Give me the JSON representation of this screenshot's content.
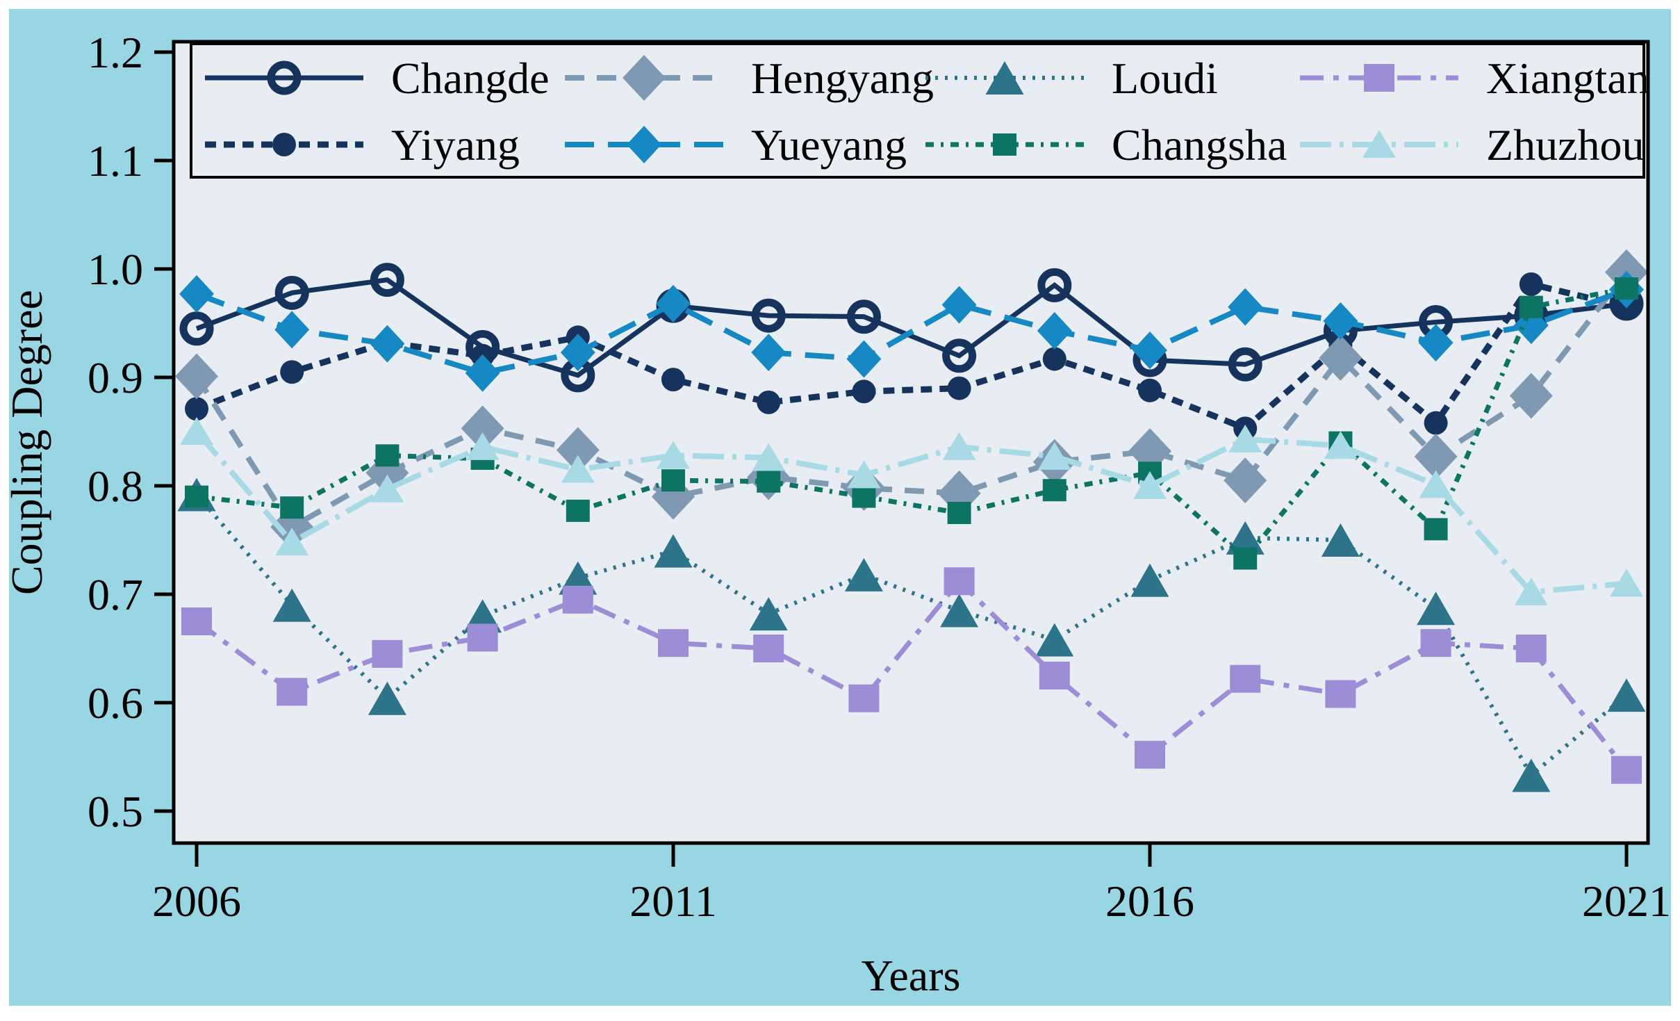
{
  "chart_data": {
    "type": "line",
    "title": "",
    "xlabel": "Years",
    "ylabel": "Coupling Degree",
    "x": [
      2006,
      2007,
      2008,
      2009,
      2010,
      2011,
      2012,
      2013,
      2014,
      2015,
      2016,
      2017,
      2018,
      2019,
      2020,
      2021
    ],
    "x_tick_labels": [
      "2006",
      "2011",
      "2016",
      "2021"
    ],
    "x_tick_values": [
      2006,
      2011,
      2016,
      2021
    ],
    "y_tick_labels": [
      "1.2",
      "1.1",
      "1.0",
      "0.9",
      "0.8",
      "0.7",
      "0.6",
      "0.5"
    ],
    "y_tick_values": [
      1.2,
      1.1,
      1.0,
      0.9,
      0.8,
      0.7,
      0.6,
      0.5
    ],
    "xlim": [
      2005.76,
      2021.23
    ],
    "ylim": [
      0.478,
      1.21
    ],
    "grid": false,
    "legend_position": "upper center",
    "legend_rows": [
      [
        0,
        2,
        4,
        6
      ],
      [
        1,
        3,
        5,
        7
      ]
    ],
    "series": [
      {
        "name": "Changde",
        "color": "#16335E",
        "marker": "circle-open",
        "line": "solid",
        "width": 7,
        "dash": "",
        "values": [
          0.945,
          0.978,
          0.99,
          0.928,
          0.902,
          0.966,
          0.957,
          0.956,
          0.92,
          0.985,
          0.916,
          0.912,
          0.943,
          0.951,
          0.957,
          0.968
        ]
      },
      {
        "name": "Yiyang",
        "color": "#16335E",
        "marker": "circle",
        "line": "dashed",
        "width": 9,
        "dash": "16 11",
        "values": [
          0.871,
          0.905,
          0.932,
          0.92,
          0.937,
          0.898,
          0.877,
          0.887,
          0.89,
          0.917,
          0.888,
          0.853,
          0.93,
          0.858,
          0.986,
          0.965
        ]
      },
      {
        "name": "Hengyang",
        "color": "#7E99B1",
        "marker": "diamond",
        "line": "dashed",
        "width": 8,
        "dash": "28 18",
        "values": [
          0.901,
          0.762,
          0.812,
          0.853,
          0.833,
          0.79,
          0.808,
          0.798,
          0.793,
          0.822,
          0.832,
          0.805,
          0.918,
          0.827,
          0.883,
          0.997
        ]
      },
      {
        "name": "Yueyang",
        "color": "#1688C4",
        "marker": "diamond",
        "line": "long-dash",
        "width": 8,
        "dash": "42 20",
        "values": [
          0.977,
          0.944,
          0.931,
          0.904,
          0.923,
          0.968,
          0.923,
          0.917,
          0.967,
          0.943,
          0.925,
          0.965,
          0.952,
          0.932,
          0.948,
          0.981
        ]
      },
      {
        "name": "Loudi",
        "color": "#2D7389",
        "marker": "triangle",
        "line": "dotted",
        "width": 6,
        "dash": "4 10",
        "values": [
          0.792,
          0.69,
          0.604,
          0.68,
          0.715,
          0.74,
          0.682,
          0.718,
          0.685,
          0.658,
          0.713,
          0.752,
          0.75,
          0.687,
          0.533,
          0.607
        ]
      },
      {
        "name": "Changsha",
        "color": "#0D7463",
        "marker": "square-small",
        "line": "dash-dot-dot",
        "width": 7,
        "dash": "12 10 4 10",
        "values": [
          0.79,
          0.78,
          0.828,
          0.825,
          0.777,
          0.805,
          0.804,
          0.79,
          0.775,
          0.796,
          0.812,
          0.733,
          0.84,
          0.76,
          0.965,
          0.982
        ]
      },
      {
        "name": "Xiangtan",
        "color": "#9C8DD6",
        "marker": "square",
        "line": "dash-dot",
        "width": 7,
        "dash": "34 14 8 14",
        "values": [
          0.675,
          0.61,
          0.645,
          0.66,
          0.695,
          0.655,
          0.65,
          0.604,
          0.712,
          0.625,
          0.552,
          0.622,
          0.608,
          0.655,
          0.65,
          0.538
        ]
      },
      {
        "name": "Zhuzhou",
        "color": "#A7DAE4",
        "marker": "triangle-small",
        "line": "long-dash-dot",
        "width": 8,
        "dash": "45 12 6 12",
        "values": [
          0.85,
          0.748,
          0.797,
          0.836,
          0.815,
          0.828,
          0.826,
          0.81,
          0.836,
          0.827,
          0.8,
          0.843,
          0.837,
          0.801,
          0.702,
          0.71
        ]
      }
    ],
    "colors": {
      "figure_background": "#97D6E2",
      "plot_background": "#E8EDF4",
      "page_background": "#FFFFFF",
      "axis": "#000000"
    }
  }
}
